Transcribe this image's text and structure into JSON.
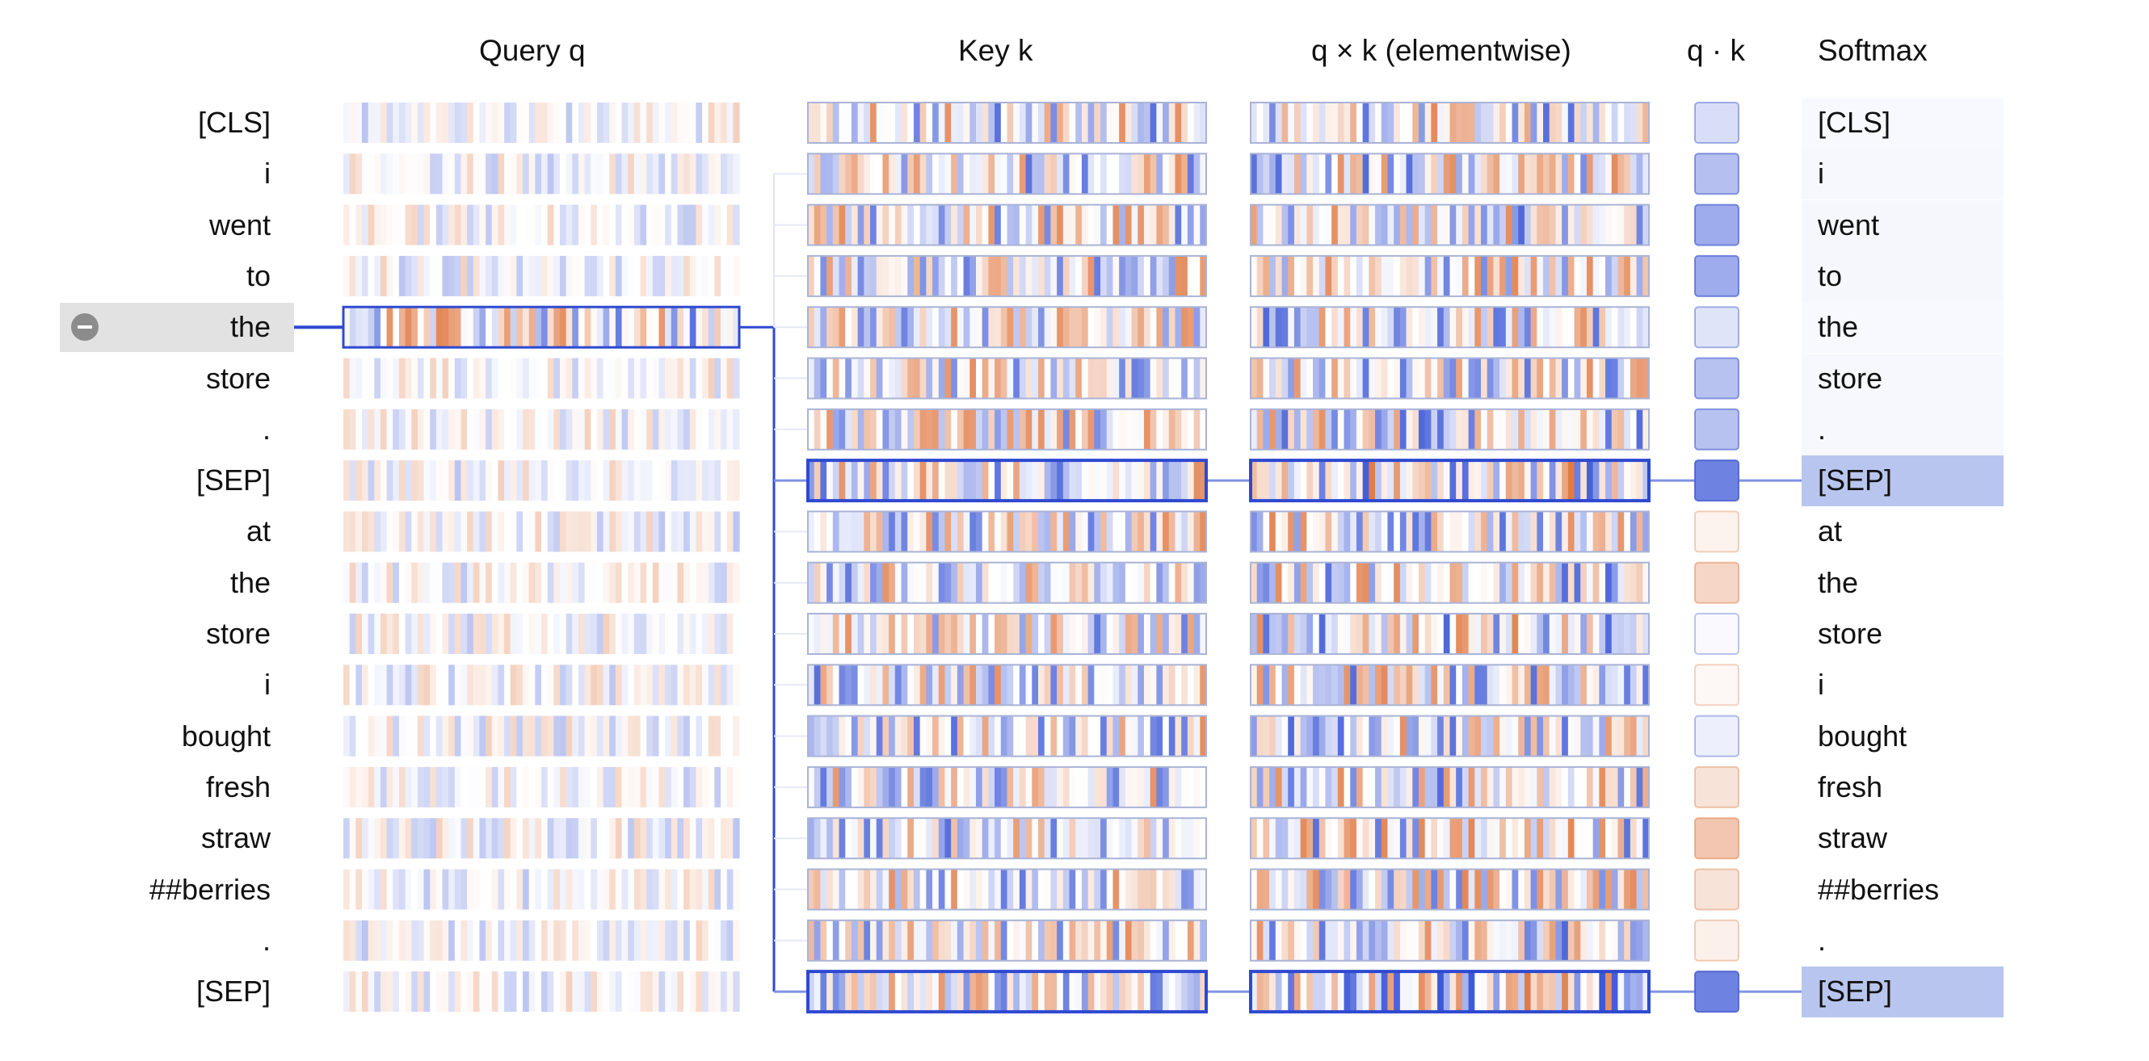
{
  "headers": {
    "query": "Query q",
    "key": "Key k",
    "elementwise": "q × k (elementwise)",
    "dot": "q · k",
    "softmax": "Softmax"
  },
  "tokens": [
    "[CLS]",
    "i",
    "went",
    "to",
    "the",
    "store",
    ".",
    "[SEP]",
    "at",
    "the",
    "store",
    "i",
    "bought",
    "fresh",
    "straw",
    "##berries",
    ".",
    "[SEP]"
  ],
  "selected_query_index": 4,
  "highlighted_key_indices": [
    7,
    17
  ],
  "dot_product": [
    0.22,
    0.42,
    0.55,
    0.55,
    0.18,
    0.4,
    0.4,
    0.82,
    -0.1,
    -0.32,
    0.03,
    -0.06,
    0.1,
    -0.22,
    -0.45,
    -0.22,
    -0.12,
    0.82
  ],
  "softmax_weights": [
    0.01,
    0.02,
    0.04,
    0.04,
    0.01,
    0.02,
    0.02,
    0.42,
    0.0,
    0.0,
    0.0,
    0.0,
    0.0,
    0.0,
    0.0,
    0.0,
    0.0,
    0.42
  ],
  "colors": {
    "positive": "#3b57d6",
    "negative": "#e07a45",
    "link": "#2e49d0",
    "selection_bg": "#e2e2e2",
    "softmax_highlight": "#b8c6ef"
  }
}
